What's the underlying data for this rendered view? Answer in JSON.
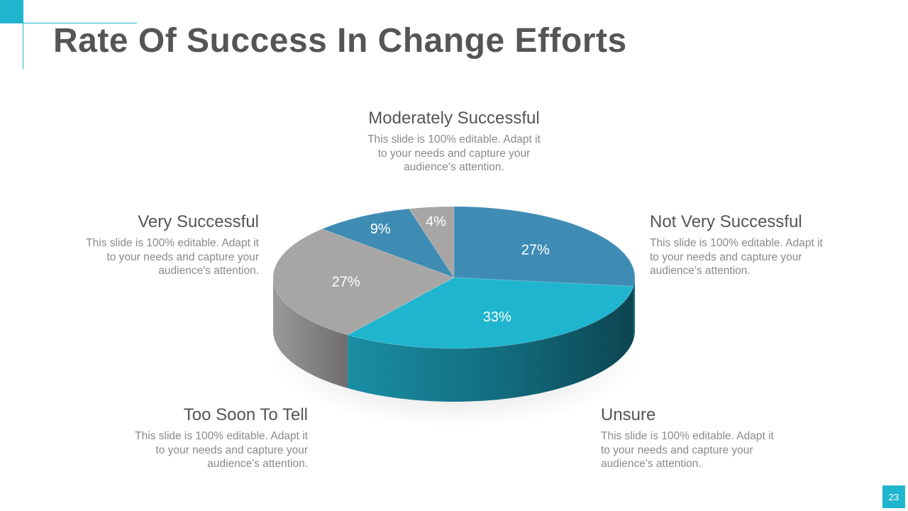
{
  "title": "Rate Of Success In Change Efforts",
  "page_number": "23",
  "colors": {
    "accent": "#1fb5cf",
    "not_very_successful": "#3e8cb4",
    "unsure": "#1fb5cf",
    "too_soon_to_tell": "#a7a6a5",
    "very_successful": "#a7a6a5",
    "moderately_successful": "#3e8cb4",
    "small_slice": "#a7a6a5"
  },
  "callouts": {
    "moderately_successful": {
      "title": "Moderately Successful",
      "text": "This slide is 100% editable. Adapt it to your needs and capture your audience's attention."
    },
    "very_successful": {
      "title": "Very Successful",
      "text": "This slide is 100% editable. Adapt it to your needs and capture your audience's attention."
    },
    "not_very_successful": {
      "title": "Not Very Successful",
      "text": "This slide is 100% editable. Adapt it to your needs and capture your audience's attention."
    },
    "too_soon_to_tell": {
      "title": "Too Soon To Tell",
      "text": "This slide is 100% editable. Adapt it to your needs and capture your audience's attention."
    },
    "unsure": {
      "title": "Unsure",
      "text": "This slide is 100% editable. Adapt it to your needs and capture your audience's attention."
    }
  },
  "chart_data": {
    "type": "pie",
    "title": "",
    "slices": [
      {
        "label": "27%",
        "value": 27,
        "color": "#3e8cb4"
      },
      {
        "label": "33%",
        "value": 33,
        "color": "#1fb5cf"
      },
      {
        "label": "27%",
        "value": 27,
        "color": "#a7a6a5"
      },
      {
        "label": "9%",
        "value": 9,
        "color": "#3e8cb4"
      },
      {
        "label": "4%",
        "value": 4,
        "color": "#a7a6a5"
      }
    ]
  }
}
